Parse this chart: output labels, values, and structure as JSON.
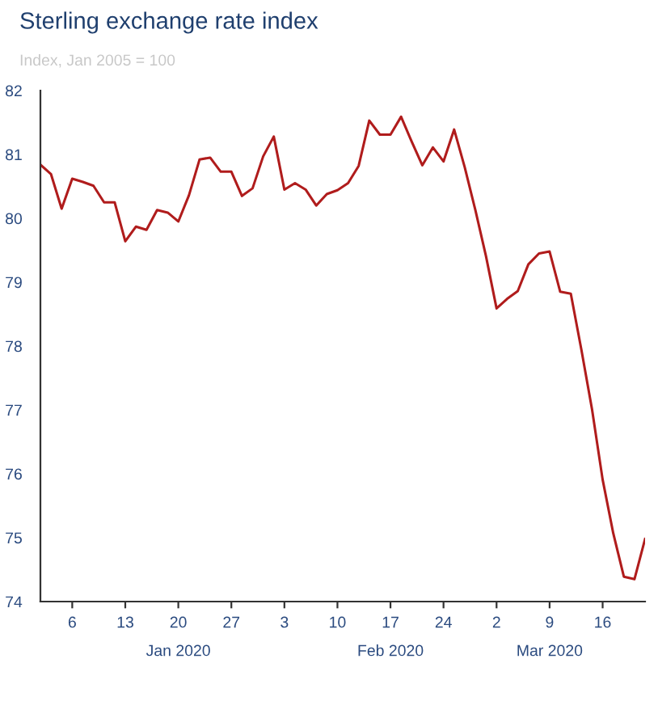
{
  "chart_data": {
    "type": "line",
    "title": "Sterling exchange rate index",
    "subtitle": "Index, Jan 2005 = 100",
    "categories": [
      null,
      null,
      null,
      "6",
      null,
      null,
      null,
      null,
      "13",
      null,
      null,
      null,
      null,
      "20\nJan 2020",
      null,
      null,
      null,
      null,
      "27",
      null,
      null,
      null,
      null,
      "3",
      null,
      null,
      null,
      null,
      "10",
      null,
      null,
      null,
      null,
      "17\nFeb 2020",
      null,
      null,
      null,
      null,
      "24",
      null,
      null,
      null,
      null,
      "2",
      null,
      null,
      null,
      null,
      "9\nMar 2020",
      null,
      null,
      null,
      null,
      "16",
      null,
      null,
      null,
      null
    ],
    "series": [
      {
        "color": "#b01c1c",
        "values": [
          80.84,
          80.69,
          80.15,
          80.62,
          80.57,
          80.51,
          80.25,
          80.25,
          79.64,
          79.87,
          79.82,
          80.13,
          80.09,
          79.95,
          80.36,
          80.92,
          80.95,
          80.73,
          80.73,
          80.35,
          80.47,
          80.97,
          81.28,
          80.45,
          80.55,
          80.45,
          80.2,
          80.38,
          80.44,
          80.55,
          80.82,
          81.53,
          81.31,
          81.31,
          81.59,
          81.2,
          80.83,
          81.11,
          80.89,
          81.39,
          80.8,
          80.13,
          79.41,
          78.59,
          78.74,
          78.86,
          79.28,
          79.45,
          79.48,
          78.85,
          78.82,
          77.94,
          77.01,
          75.91,
          75.07,
          74.39,
          74.35,
          74.98
        ]
      }
    ],
    "ylim": [
      74,
      82
    ],
    "yticks": [
      74,
      75,
      76,
      77,
      78,
      79,
      80,
      81,
      82
    ],
    "grid": false,
    "marker": "none",
    "line_style": "solid"
  }
}
